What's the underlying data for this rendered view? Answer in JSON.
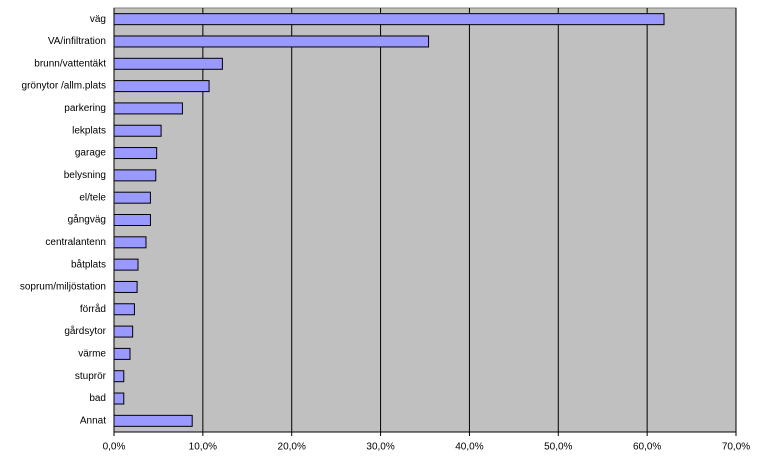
{
  "chart_data": {
    "type": "bar",
    "orientation": "horizontal",
    "categories": [
      "väg",
      "VA/infiltration",
      "brunn/vattentäkt",
      "grönytor /allm.plats",
      "parkering",
      "lekplats",
      "garage",
      "belysning",
      "el/tele",
      "gångväg",
      "centralantenn",
      "båtplats",
      "soprum/miljöstation",
      "förråd",
      "gårdsytor",
      "värme",
      "stuprör",
      "bad",
      "Annat"
    ],
    "values": [
      61.9,
      35.4,
      12.2,
      10.7,
      7.7,
      5.3,
      4.8,
      4.7,
      4.1,
      4.1,
      3.6,
      2.7,
      2.6,
      2.3,
      2.1,
      1.8,
      1.1,
      1.1,
      8.8
    ],
    "color": "#9999ff",
    "xlim": [
      0,
      70
    ],
    "xticks": [
      {
        "value": 0,
        "label": "0,0%"
      },
      {
        "value": 10,
        "label": "10,0%"
      },
      {
        "value": 20,
        "label": "20,0%"
      },
      {
        "value": 30,
        "label": "30,0%"
      },
      {
        "value": 40,
        "label": "40,0%"
      },
      {
        "value": 50,
        "label": "50,0%"
      },
      {
        "value": 60,
        "label": "60,0%"
      },
      {
        "value": 70,
        "label": "70,0%"
      }
    ],
    "grid": true
  }
}
